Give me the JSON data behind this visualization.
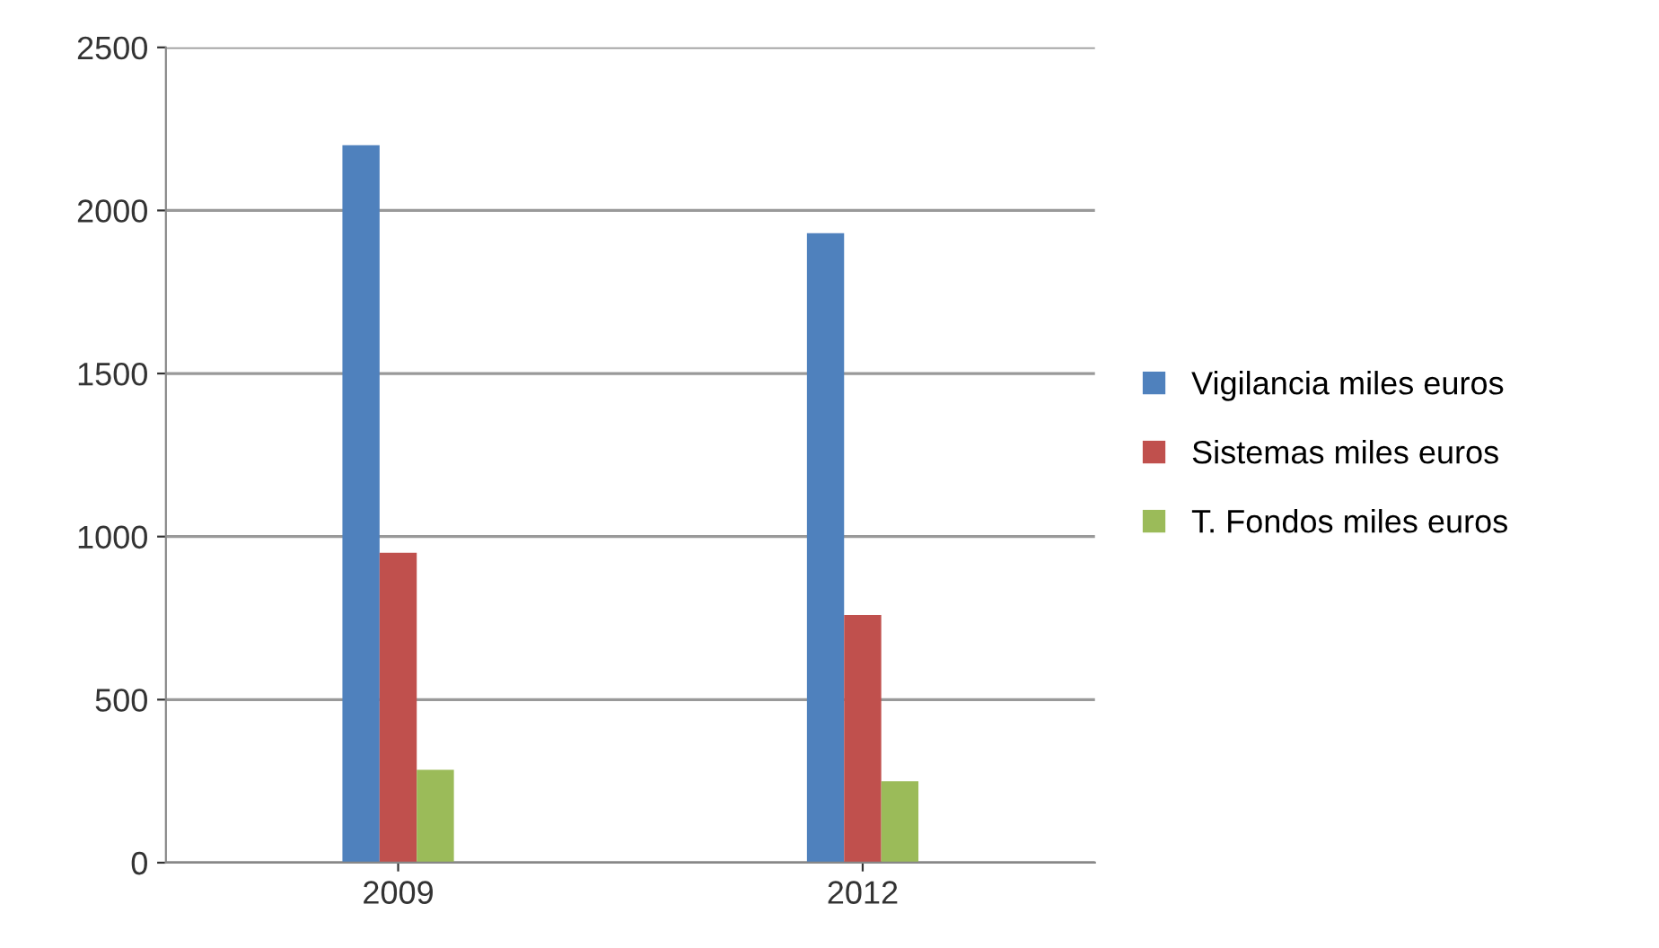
{
  "chart_data": {
    "type": "bar",
    "categories": [
      "2009",
      "2012"
    ],
    "series": [
      {
        "name": "Vigilancia miles euros",
        "color": "#4f81bd",
        "values": [
          2200,
          1930
        ]
      },
      {
        "name": "Sistemas miles euros",
        "color": "#c0504d",
        "values": [
          950,
          760
        ]
      },
      {
        "name": "T. Fondos miles euros",
        "color": "#9bbb59",
        "values": [
          285,
          250
        ]
      }
    ],
    "ylim": [
      0,
      2500
    ],
    "yticks": [
      0,
      500,
      1000,
      1500,
      2000,
      2500
    ],
    "grid": "y",
    "legend": "right"
  }
}
